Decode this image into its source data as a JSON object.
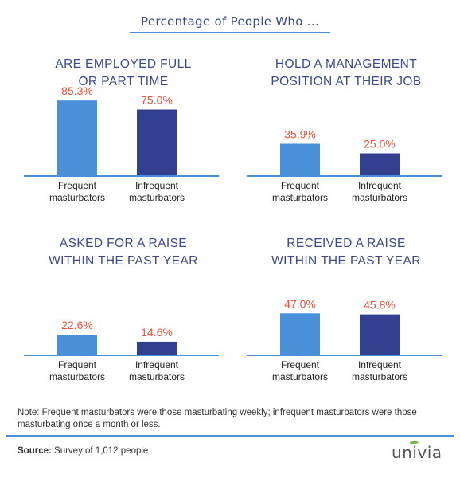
{
  "header": {
    "title": "Percentage of People Who ..."
  },
  "chart_data": [
    {
      "type": "bar",
      "title": "ARE EMPLOYED FULL\nOR PART TIME",
      "categories": [
        "Frequent\nmasturbators",
        "Infrequent\nmasturbators"
      ],
      "values": [
        85.3,
        75.0
      ],
      "value_labels": [
        "85.3%",
        "75.0%"
      ],
      "ylim": [
        0,
        100
      ]
    },
    {
      "type": "bar",
      "title": "HOLD A MANAGEMENT\nPOSITION AT THEIR JOB",
      "categories": [
        "Frequent\nmasturbators",
        "Infrequent\nmasturbators"
      ],
      "values": [
        35.9,
        25.0
      ],
      "value_labels": [
        "35.9%",
        "25.0%"
      ],
      "ylim": [
        0,
        100
      ]
    },
    {
      "type": "bar",
      "title": "ASKED FOR A RAISE\nWITHIN THE PAST YEAR",
      "categories": [
        "Frequent\nmasturbators",
        "Infrequent\nmasturbators"
      ],
      "values": [
        22.6,
        14.6
      ],
      "value_labels": [
        "22.6%",
        "14.6%"
      ],
      "ylim": [
        0,
        100
      ]
    },
    {
      "type": "bar",
      "title": "RECEIVED A RAISE\nWITHIN THE PAST YEAR",
      "categories": [
        "Frequent\nmasturbators",
        "Infrequent\nmasturbators"
      ],
      "values": [
        47.0,
        45.8
      ],
      "value_labels": [
        "47.0%",
        "45.8%"
      ],
      "ylim": [
        0,
        100
      ]
    }
  ],
  "colors": {
    "frequent": "#4a90d9",
    "infrequent": "#333f8f",
    "value_label": "#e8553e",
    "title": "#3a4a8c",
    "baseline": "#4a90d9"
  },
  "note": "Note: Frequent masturbators were those masturbating weekly; infrequent masturbators were those masturbating once a month or less.",
  "source": {
    "label": "Source:",
    "text": "Survey of 1,012 people"
  },
  "logo": {
    "text": "univia"
  }
}
